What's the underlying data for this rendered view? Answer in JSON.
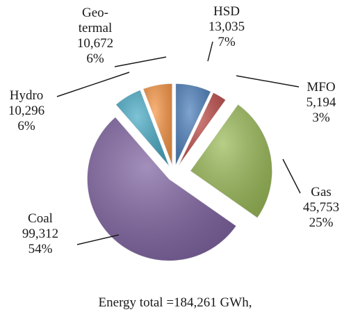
{
  "chart_data": {
    "type": "pie",
    "exploded": true,
    "footnote": "Energy total =184,261 GWh,",
    "slices": [
      {
        "name": "HSD",
        "value_label": "13,035",
        "percent_label": "7%",
        "value": 13035,
        "color": "#4f81bd"
      },
      {
        "name": "MFO",
        "value_label": "5,194",
        "percent_label": "3%",
        "value": 5194,
        "color": "#c0504d"
      },
      {
        "name": "Gas",
        "value_label": "45,753",
        "percent_label": "25%",
        "value": 45753,
        "color": "#9bbb59"
      },
      {
        "name": "Coal",
        "value_label": "99,312",
        "percent_label": "54%",
        "value": 99312,
        "color": "#8064a2"
      },
      {
        "name": "Hydro",
        "value_label": "10,296",
        "percent_label": "6%",
        "value": 10296,
        "color": "#4bacc6"
      },
      {
        "name": "Geo-\ntermal",
        "value_label": "10,672",
        "percent_label": "6%",
        "value": 10672,
        "color": "#f79646"
      }
    ]
  }
}
